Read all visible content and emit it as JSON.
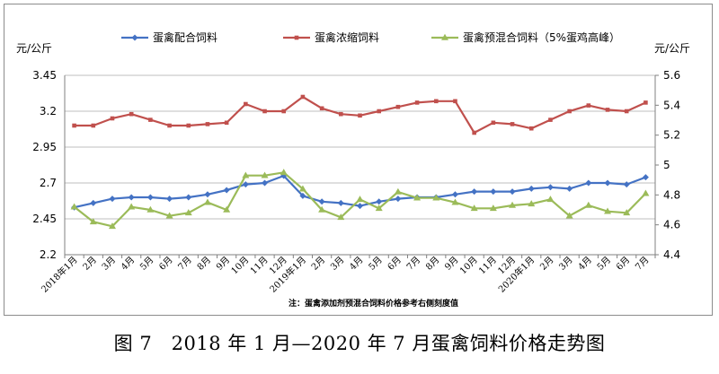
{
  "caption": "图 7　2018 年 1 月—2020 年 7 月蛋禽饲料价格走势图",
  "note": "注：蛋禽添加剂预混合饲料价格参考右侧刻度值",
  "chart_data": {
    "type": "line",
    "categories": [
      "2018年1月",
      "2月",
      "3月",
      "4月",
      "5月",
      "6月",
      "7月",
      "8月",
      "9月",
      "10月",
      "11月",
      "12月",
      "2019年1月",
      "2月",
      "3月",
      "4月",
      "5月",
      "6月",
      "7月",
      "8月",
      "9月",
      "10月",
      "11月",
      "12月",
      "2020年1月",
      "2月",
      "3月",
      "4月",
      "5月",
      "6月",
      "7月"
    ],
    "left_axis": {
      "unit": "元/公斤",
      "ylim": [
        2.2,
        3.45
      ],
      "ticks": [
        "2.2",
        "2.45",
        "2.7",
        "2.95",
        "3.2",
        "3.45"
      ]
    },
    "right_axis": {
      "unit": "元/公斤",
      "ylim": [
        4.4,
        5.6
      ],
      "ticks": [
        "4.4",
        "4.6",
        "4.8",
        "5",
        "5.2",
        "5.4",
        "5.6"
      ]
    },
    "series": [
      {
        "name": "蛋禽配合饲料",
        "axis": "left",
        "color": "#4472C4",
        "marker": "diamond",
        "values": [
          2.53,
          2.56,
          2.59,
          2.6,
          2.6,
          2.59,
          2.6,
          2.62,
          2.65,
          2.69,
          2.7,
          2.75,
          2.61,
          2.57,
          2.56,
          2.54,
          2.57,
          2.59,
          2.6,
          2.6,
          2.62,
          2.64,
          2.64,
          2.64,
          2.66,
          2.67,
          2.66,
          2.7,
          2.7,
          2.69,
          2.74
        ]
      },
      {
        "name": "蛋禽浓缩饲料",
        "axis": "left",
        "color": "#C0504D",
        "marker": "square",
        "values": [
          3.1,
          3.1,
          3.15,
          3.18,
          3.14,
          3.1,
          3.1,
          3.11,
          3.12,
          3.25,
          3.2,
          3.2,
          3.3,
          3.22,
          3.18,
          3.17,
          3.2,
          3.23,
          3.26,
          3.27,
          3.27,
          3.05,
          3.12,
          3.11,
          3.08,
          3.14,
          3.2,
          3.24,
          3.21,
          3.2,
          3.26
        ]
      },
      {
        "name": "蛋禽预混合饲料（5%蛋鸡高峰）",
        "axis": "right",
        "color": "#9BBB59",
        "marker": "triangle",
        "values": [
          4.72,
          4.62,
          4.59,
          4.72,
          4.7,
          4.66,
          4.68,
          4.75,
          4.7,
          4.93,
          4.93,
          4.95,
          4.84,
          4.7,
          4.65,
          4.77,
          4.71,
          4.82,
          4.78,
          4.78,
          4.75,
          4.71,
          4.71,
          4.73,
          4.74,
          4.77,
          4.66,
          4.73,
          4.69,
          4.68,
          4.81
        ]
      }
    ]
  }
}
